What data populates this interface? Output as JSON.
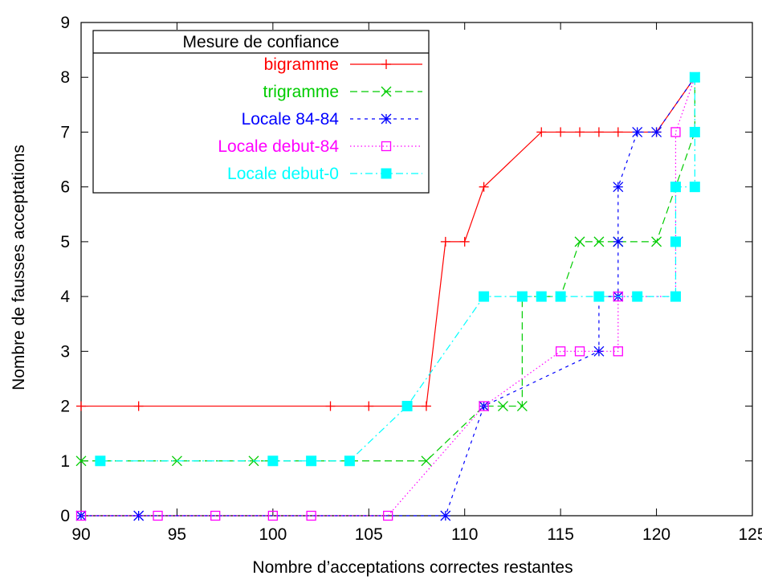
{
  "chart_data": {
    "type": "line",
    "title": "",
    "xlabel": "Nombre d’acceptations correctes restantes",
    "ylabel": "Nombre de fausses acceptations",
    "xlim": [
      90,
      125
    ],
    "ylim": [
      0,
      9
    ],
    "xticks": [
      90,
      95,
      100,
      105,
      110,
      115,
      120,
      125
    ],
    "yticks": [
      0,
      1,
      2,
      3,
      4,
      5,
      6,
      7,
      8,
      9
    ],
    "grid": false,
    "legend": {
      "title": "Mesure de confiance",
      "placement": "top-left"
    },
    "series": [
      {
        "name": "bigramme",
        "color": "#ff0000",
        "marker": "plus",
        "dash": "solid",
        "points": [
          [
            90,
            2
          ],
          [
            93,
            2
          ],
          [
            103,
            2
          ],
          [
            105,
            2
          ],
          [
            108,
            2
          ],
          [
            109,
            5
          ],
          [
            110,
            5
          ],
          [
            111,
            6
          ],
          [
            114,
            7
          ],
          [
            115,
            7
          ],
          [
            116,
            7
          ],
          [
            117,
            7
          ],
          [
            118,
            7
          ],
          [
            120,
            7
          ],
          [
            122,
            8
          ]
        ]
      },
      {
        "name": "trigramme",
        "color": "#00cc00",
        "marker": "cross",
        "dash": "dashed",
        "points": [
          [
            90,
            1
          ],
          [
            95,
            1
          ],
          [
            99,
            1
          ],
          [
            108,
            1
          ],
          [
            111,
            2
          ],
          [
            112,
            2
          ],
          [
            113,
            2
          ],
          [
            113,
            4
          ],
          [
            115,
            4
          ],
          [
            116,
            5
          ],
          [
            117,
            5
          ],
          [
            118,
            5
          ],
          [
            120,
            5
          ],
          [
            121,
            6
          ],
          [
            122,
            7
          ],
          [
            122,
            8
          ]
        ]
      },
      {
        "name": "Locale 84-84",
        "color": "#0000ff",
        "marker": "star",
        "dash": "short-dash",
        "points": [
          [
            90,
            0
          ],
          [
            93,
            0
          ],
          [
            109,
            0
          ],
          [
            111,
            2
          ],
          [
            117,
            3
          ],
          [
            117,
            4
          ],
          [
            118,
            4
          ],
          [
            118,
            5
          ],
          [
            118,
            6
          ],
          [
            119,
            7
          ],
          [
            120,
            7
          ],
          [
            122,
            8
          ]
        ]
      },
      {
        "name": "Locale debut-84",
        "color": "#ff00ff",
        "marker": "open-square",
        "dash": "dotted",
        "points": [
          [
            90,
            0
          ],
          [
            94,
            0
          ],
          [
            97,
            0
          ],
          [
            100,
            0
          ],
          [
            102,
            0
          ],
          [
            106,
            0
          ],
          [
            111,
            2
          ],
          [
            115,
            3
          ],
          [
            116,
            3
          ],
          [
            118,
            3
          ],
          [
            118,
            4
          ],
          [
            121,
            4
          ],
          [
            121,
            7
          ],
          [
            122,
            8
          ]
        ]
      },
      {
        "name": "Locale debut-0",
        "color": "#00ffff",
        "marker": "filled-square",
        "dash": "dash-dot",
        "points": [
          [
            91,
            1
          ],
          [
            100,
            1
          ],
          [
            102,
            1
          ],
          [
            104,
            1
          ],
          [
            107,
            2
          ],
          [
            111,
            4
          ],
          [
            113,
            4
          ],
          [
            114,
            4
          ],
          [
            115,
            4
          ],
          [
            117,
            4
          ],
          [
            119,
            4
          ],
          [
            121,
            4
          ],
          [
            121,
            5
          ],
          [
            121,
            6
          ],
          [
            122,
            6
          ],
          [
            122,
            7
          ],
          [
            122,
            8
          ]
        ]
      }
    ]
  }
}
